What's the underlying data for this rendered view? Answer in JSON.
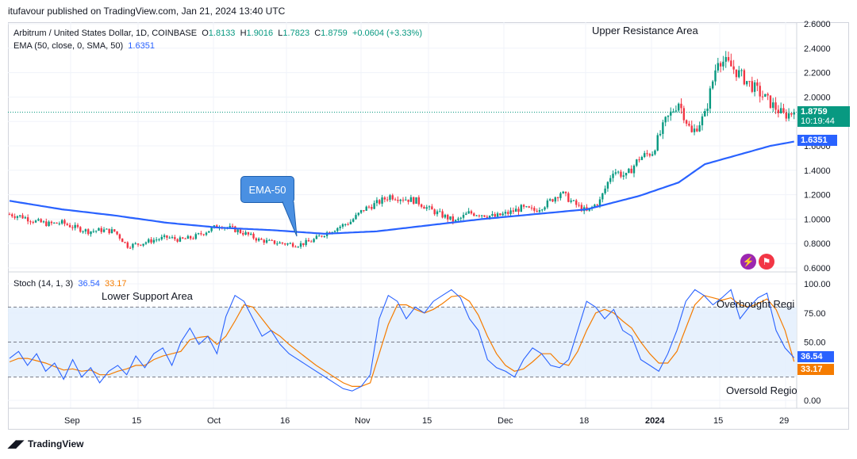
{
  "header": {
    "published": "itufavour published on TradingView.com, Jan 21, 2024 13:40 UTC"
  },
  "legend": {
    "symbol": "Arbitrum / United States Dollar, 1D, COINBASE",
    "o_label": "O",
    "o": "1.8133",
    "h_label": "H",
    "h": "1.9016",
    "l_label": "L",
    "l": "1.7823",
    "c_label": "C",
    "c": "1.8759",
    "change": "+0.0604 (+3.33%)",
    "ema_label": "EMA (50, close, 0, SMA, 50)",
    "ema_value": "1.6351",
    "stoch_label": "Stoch (14, 1, 3)",
    "stoch_k": "36.54",
    "stoch_d": "33.17"
  },
  "annotations": {
    "upper_resistance": "Upper Resistance Area",
    "lower_support": "Lower Support Area",
    "ema_callout": "EMA-50",
    "overbought": "Overbought Regi",
    "oversold": "Oversold Regio"
  },
  "price_tags": {
    "last_price": "1.8759",
    "countdown": "10:19:44",
    "ema": "1.6351",
    "stoch_k": "36.54",
    "stoch_d": "33.17"
  },
  "footer": {
    "brand": "TradingView"
  },
  "colors": {
    "up": "#089981",
    "down": "#f23645",
    "ema": "#2962ff",
    "stoch_k": "#2962ff",
    "stoch_d": "#f57c00",
    "stoch_band": "#e3effd"
  },
  "chart_data": [
    {
      "type": "candlestick",
      "title": "Arbitrum / United States Dollar, 1D, COINBASE",
      "x_ticks": [
        "Sep",
        "15",
        "Oct",
        "16",
        "Nov",
        "15",
        "Dec",
        "18",
        "2024",
        "15",
        "29"
      ],
      "y_ticks": [
        "0.6000",
        "0.8000",
        "1.0000",
        "1.2000",
        "1.4000",
        "1.6000",
        "1.8000",
        "2.0000",
        "2.2000",
        "2.4000",
        "2.6000"
      ],
      "ylim": [
        0.6,
        2.6
      ],
      "last_close": 1.8759,
      "close_path": [
        [
          0,
          1.04
        ],
        [
          5,
          1.02
        ],
        [
          10,
          0.98
        ],
        [
          15,
          0.96
        ],
        [
          20,
          0.97
        ],
        [
          25,
          0.93
        ],
        [
          30,
          0.9
        ],
        [
          35,
          0.91
        ],
        [
          40,
          0.9
        ],
        [
          45,
          0.78
        ],
        [
          50,
          0.8
        ],
        [
          55,
          0.83
        ],
        [
          60,
          0.85
        ],
        [
          65,
          0.83
        ],
        [
          70,
          0.85
        ],
        [
          75,
          0.9
        ],
        [
          80,
          0.95
        ],
        [
          85,
          0.92
        ],
        [
          90,
          0.88
        ],
        [
          95,
          0.83
        ],
        [
          100,
          0.81
        ],
        [
          105,
          0.8
        ],
        [
          110,
          0.79
        ],
        [
          115,
          0.82
        ],
        [
          120,
          0.88
        ],
        [
          125,
          0.93
        ],
        [
          130,
          0.98
        ],
        [
          135,
          1.08
        ],
        [
          140,
          1.13
        ],
        [
          145,
          1.19
        ],
        [
          150,
          1.17
        ],
        [
          155,
          1.15
        ],
        [
          160,
          1.08
        ],
        [
          165,
          1.03
        ],
        [
          170,
          0.98
        ],
        [
          175,
          1.05
        ],
        [
          180,
          1.04
        ],
        [
          185,
          1.02
        ],
        [
          190,
          1.05
        ],
        [
          195,
          1.09
        ],
        [
          200,
          1.07
        ],
        [
          205,
          1.13
        ],
        [
          210,
          1.22
        ],
        [
          215,
          1.13
        ],
        [
          220,
          1.06
        ],
        [
          225,
          1.15
        ],
        [
          230,
          1.4
        ],
        [
          235,
          1.35
        ],
        [
          240,
          1.5
        ],
        [
          245,
          1.55
        ],
        [
          250,
          1.8
        ],
        [
          255,
          1.96
        ],
        [
          260,
          1.7
        ],
        [
          265,
          1.85
        ],
        [
          270,
          2.32
        ],
        [
          275,
          2.25
        ],
        [
          280,
          2.15
        ],
        [
          285,
          2.05
        ],
        [
          290,
          1.95
        ],
        [
          295,
          1.85
        ],
        [
          299,
          1.8759
        ]
      ],
      "ema_path": [
        [
          0,
          1.15
        ],
        [
          20,
          1.08
        ],
        [
          40,
          1.03
        ],
        [
          60,
          0.97
        ],
        [
          80,
          0.93
        ],
        [
          100,
          0.91
        ],
        [
          120,
          0.88
        ],
        [
          140,
          0.9
        ],
        [
          160,
          0.95
        ],
        [
          180,
          1.0
        ],
        [
          200,
          1.04
        ],
        [
          220,
          1.08
        ],
        [
          240,
          1.19
        ],
        [
          255,
          1.3
        ],
        [
          265,
          1.45
        ],
        [
          280,
          1.54
        ],
        [
          290,
          1.6
        ],
        [
          299,
          1.6351
        ]
      ]
    },
    {
      "type": "line",
      "title": "Stoch (14, 1, 3)",
      "y_ticks": [
        "0.00",
        "25.00",
        "50.00",
        "75.00",
        "100.00"
      ],
      "ylim": [
        0,
        100
      ],
      "levels": [
        20,
        50,
        80
      ],
      "series": [
        {
          "name": "%K",
          "values": [
            36,
            42,
            30,
            40,
            25,
            32,
            18,
            35,
            20,
            28,
            15,
            25,
            30,
            22,
            38,
            28,
            40,
            45,
            30,
            50,
            62,
            48,
            55,
            40,
            72,
            90,
            85,
            70,
            55,
            60,
            48,
            40,
            35,
            30,
            25,
            20,
            15,
            10,
            8,
            12,
            22,
            70,
            90,
            85,
            70,
            80,
            75,
            85,
            90,
            95,
            88,
            70,
            60,
            35,
            28,
            25,
            20,
            35,
            45,
            40,
            30,
            28,
            35,
            60,
            85,
            80,
            70,
            78,
            60,
            55,
            35,
            30,
            25,
            40,
            60,
            85,
            95,
            90,
            82,
            88,
            95,
            70,
            80,
            88,
            92,
            60,
            45,
            36.54
          ]
        },
        {
          "name": "%D",
          "values": [
            33,
            36,
            36,
            34,
            32,
            29,
            26,
            27,
            25,
            26,
            22,
            22,
            25,
            27,
            30,
            30,
            35,
            38,
            40,
            42,
            52,
            54,
            55,
            48,
            55,
            68,
            82,
            80,
            70,
            60,
            55,
            48,
            42,
            36,
            30,
            25,
            20,
            15,
            12,
            12,
            15,
            40,
            65,
            82,
            82,
            78,
            75,
            78,
            83,
            89,
            90,
            85,
            73,
            55,
            40,
            30,
            25,
            27,
            33,
            40,
            40,
            32,
            30,
            42,
            60,
            75,
            78,
            75,
            68,
            62,
            50,
            40,
            32,
            32,
            42,
            62,
            82,
            90,
            88,
            86,
            88,
            82,
            80,
            83,
            87,
            78,
            60,
            33.17
          ]
        }
      ]
    }
  ]
}
